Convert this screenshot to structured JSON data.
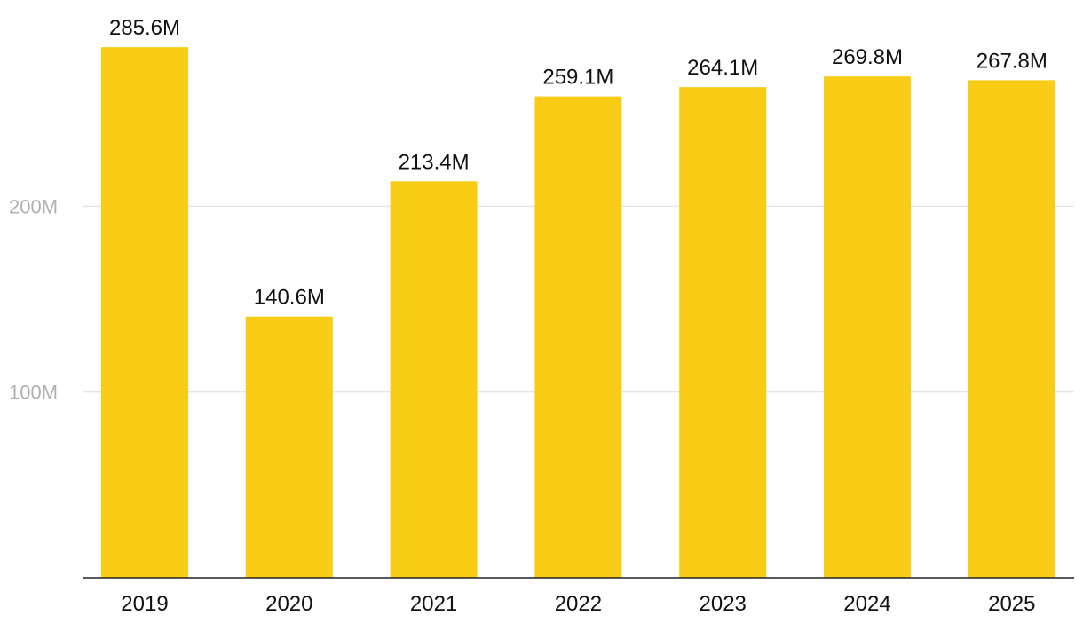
{
  "chart_data": {
    "type": "bar",
    "title": "",
    "xlabel": "",
    "ylabel": "",
    "categories": [
      "2019",
      "2020",
      "2021",
      "2022",
      "2023",
      "2024",
      "2025"
    ],
    "values": [
      285.6,
      140.6,
      213.4,
      259.1,
      264.1,
      269.8,
      267.8
    ],
    "data_labels": [
      "285.6M",
      "140.6M",
      "213.4M",
      "259.1M",
      "264.1M",
      "269.8M",
      "267.8M"
    ],
    "y_ticks": [
      100,
      200
    ],
    "y_tick_labels": [
      "100M",
      "200M"
    ],
    "ylim": [
      0,
      300
    ],
    "grid": true,
    "legend": "none",
    "colors": {
      "bar": "#F9CC15",
      "gridline": "#e4e4e4",
      "axis": "#222222",
      "tick_y": "#b0b0b0",
      "text": "#111111"
    }
  }
}
